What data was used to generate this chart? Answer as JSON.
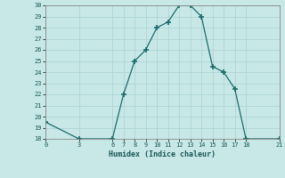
{
  "x": [
    0,
    3,
    6,
    7,
    8,
    9,
    10,
    11,
    12,
    13,
    14,
    15,
    16,
    17,
    18,
    21
  ],
  "y": [
    19.5,
    18,
    18,
    22,
    25,
    26,
    28,
    28.5,
    30,
    30,
    29,
    24.5,
    24,
    22.5,
    18,
    18
  ],
  "line_color": "#1a6b6b",
  "marker_color": "#1a6b6b",
  "bg_color": "#c8e8e8",
  "grid_color": "#aed4d4",
  "xlabel": "Humidex (Indice chaleur)",
  "ylabel": "",
  "xlim": [
    0,
    21
  ],
  "ylim": [
    18,
    30
  ],
  "xticks": [
    0,
    3,
    6,
    7,
    8,
    9,
    10,
    11,
    12,
    13,
    14,
    15,
    16,
    17,
    18,
    21
  ],
  "yticks": [
    18,
    19,
    20,
    21,
    22,
    23,
    24,
    25,
    26,
    27,
    28,
    29,
    30
  ]
}
